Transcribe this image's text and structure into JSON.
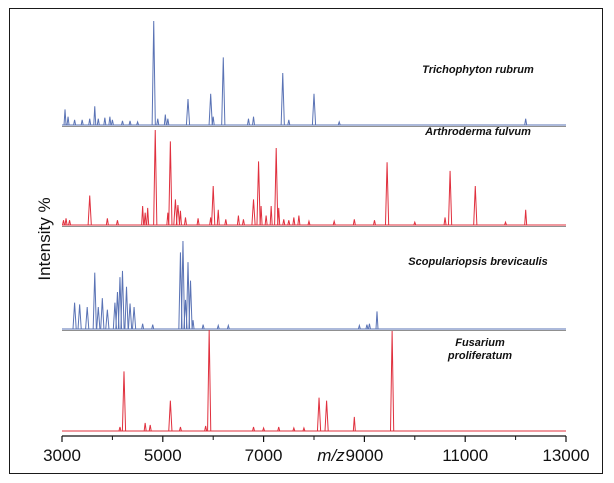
{
  "chart_data": {
    "type": "line",
    "subtype": "stacked mass spectra",
    "xlabel": "m/z",
    "ylabel": "Intensity %",
    "xlim": [
      3000,
      13000
    ],
    "x_ticks": [
      "3000",
      "5000",
      "7000",
      "9000",
      "11000",
      "13000"
    ],
    "grid": false,
    "colors": {
      "blue": "#5a73b5",
      "red": "#e0303e",
      "axis": "#111111"
    },
    "series": [
      {
        "name": "Trichophyton rubrum",
        "label_lines": [
          "Trichophyton rubrum"
        ],
        "color": "#5a73b5",
        "peaks": [
          [
            3060,
            0.15
          ],
          [
            3120,
            0.08
          ],
          [
            3250,
            0.05
          ],
          [
            3400,
            0.05
          ],
          [
            3550,
            0.06
          ],
          [
            3650,
            0.18
          ],
          [
            3720,
            0.06
          ],
          [
            3850,
            0.07
          ],
          [
            3950,
            0.08
          ],
          [
            4000,
            0.05
          ],
          [
            4200,
            0.04
          ],
          [
            4350,
            0.04
          ],
          [
            4500,
            0.03
          ],
          [
            4820,
            1.0
          ],
          [
            4900,
            0.06
          ],
          [
            5050,
            0.1
          ],
          [
            5100,
            0.06
          ],
          [
            5500,
            0.25
          ],
          [
            5950,
            0.3
          ],
          [
            6000,
            0.08
          ],
          [
            6200,
            0.65
          ],
          [
            6700,
            0.06
          ],
          [
            6800,
            0.08
          ],
          [
            7380,
            0.5
          ],
          [
            7500,
            0.05
          ],
          [
            8000,
            0.3
          ],
          [
            8500,
            0.03
          ],
          [
            12200,
            0.06
          ]
        ]
      },
      {
        "name": "Arthroderma fulvum",
        "label_lines": [
          "Arthroderma fulvum"
        ],
        "color": "#e0303e",
        "peaks": [
          [
            3030,
            0.05
          ],
          [
            3080,
            0.07
          ],
          [
            3150,
            0.05
          ],
          [
            3550,
            0.31
          ],
          [
            3900,
            0.07
          ],
          [
            4100,
            0.05
          ],
          [
            4600,
            0.2
          ],
          [
            4650,
            0.13
          ],
          [
            4700,
            0.18
          ],
          [
            4850,
            1.0
          ],
          [
            5100,
            0.13
          ],
          [
            5150,
            0.88
          ],
          [
            5250,
            0.27
          ],
          [
            5300,
            0.21
          ],
          [
            5350,
            0.15
          ],
          [
            5450,
            0.08
          ],
          [
            5700,
            0.07
          ],
          [
            5950,
            0.08
          ],
          [
            6000,
            0.41
          ],
          [
            6100,
            0.16
          ],
          [
            6250,
            0.06
          ],
          [
            6500,
            0.1
          ],
          [
            6600,
            0.06
          ],
          [
            6800,
            0.27
          ],
          [
            6900,
            0.67
          ],
          [
            6950,
            0.2
          ],
          [
            7050,
            0.1
          ],
          [
            7150,
            0.2
          ],
          [
            7250,
            0.81
          ],
          [
            7300,
            0.18
          ],
          [
            7400,
            0.06
          ],
          [
            7500,
            0.05
          ],
          [
            7600,
            0.08
          ],
          [
            7700,
            0.1
          ],
          [
            7900,
            0.04
          ],
          [
            8400,
            0.04
          ],
          [
            8800,
            0.06
          ],
          [
            9200,
            0.05
          ],
          [
            9450,
            0.66
          ],
          [
            10000,
            0.03
          ],
          [
            10600,
            0.08
          ],
          [
            10700,
            0.57
          ],
          [
            11200,
            0.41
          ],
          [
            11800,
            0.03
          ],
          [
            12200,
            0.16
          ]
        ]
      },
      {
        "name": "Scopulariopsis brevicaulis",
        "label_lines": [
          "Scopulariopsis brevicaulis"
        ],
        "color": "#5a73b5",
        "peaks": [
          [
            3250,
            0.3
          ],
          [
            3350,
            0.28
          ],
          [
            3500,
            0.25
          ],
          [
            3650,
            0.64
          ],
          [
            3720,
            0.25
          ],
          [
            3800,
            0.35
          ],
          [
            3900,
            0.22
          ],
          [
            4050,
            0.3
          ],
          [
            4100,
            0.42
          ],
          [
            4150,
            0.59
          ],
          [
            4200,
            0.66
          ],
          [
            4280,
            0.48
          ],
          [
            4350,
            0.29
          ],
          [
            4430,
            0.25
          ],
          [
            4600,
            0.06
          ],
          [
            4800,
            0.05
          ],
          [
            5350,
            0.87
          ],
          [
            5400,
            1.0
          ],
          [
            5450,
            0.33
          ],
          [
            5500,
            0.76
          ],
          [
            5550,
            0.55
          ],
          [
            5600,
            0.1
          ],
          [
            5800,
            0.05
          ],
          [
            6100,
            0.04
          ],
          [
            6300,
            0.04
          ],
          [
            8900,
            0.04
          ],
          [
            9050,
            0.05
          ],
          [
            9100,
            0.06
          ],
          [
            9250,
            0.2
          ]
        ]
      },
      {
        "name": "Fusarium proliferatum",
        "label_lines": [
          "Fusarium",
          "proliferatum"
        ],
        "color": "#e0303e",
        "peaks": [
          [
            4150,
            0.04
          ],
          [
            4230,
            0.59
          ],
          [
            4650,
            0.08
          ],
          [
            4750,
            0.06
          ],
          [
            5150,
            0.3
          ],
          [
            5350,
            0.04
          ],
          [
            5850,
            0.05
          ],
          [
            5920,
            1.0
          ],
          [
            6800,
            0.04
          ],
          [
            7000,
            0.03
          ],
          [
            7300,
            0.04
          ],
          [
            7600,
            0.03
          ],
          [
            7800,
            0.03
          ],
          [
            8100,
            0.33
          ],
          [
            8250,
            0.3
          ],
          [
            8800,
            0.14
          ],
          [
            9550,
            0.99
          ]
        ]
      }
    ]
  }
}
